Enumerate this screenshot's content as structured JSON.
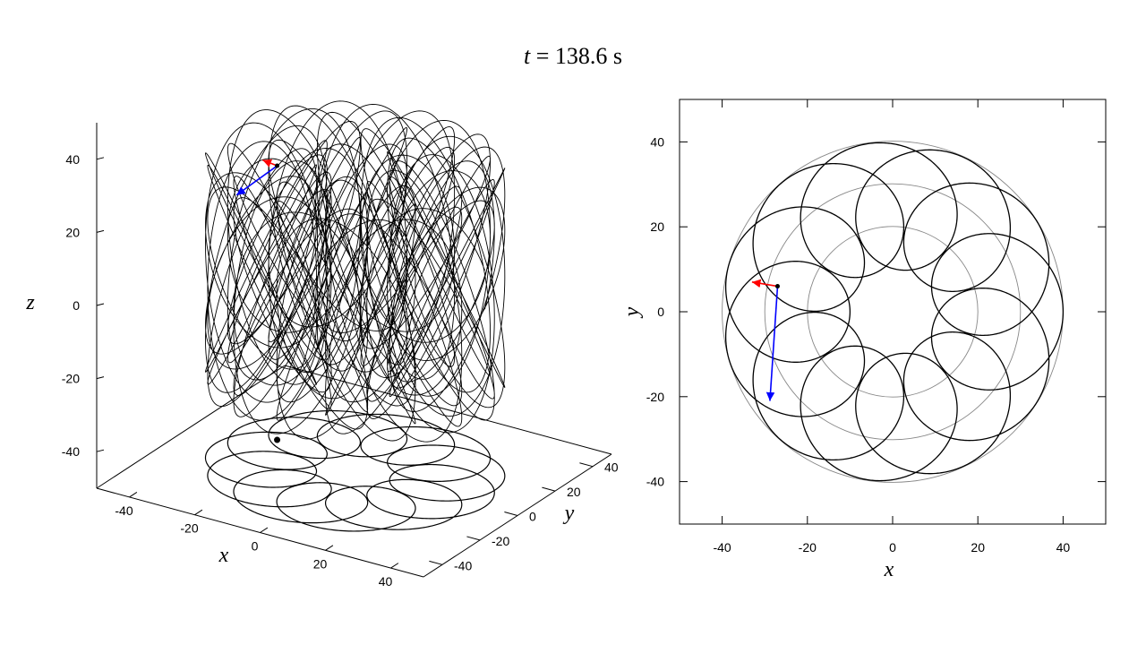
{
  "title": {
    "variable": "t",
    "rest": " = 138.6 s"
  },
  "chart_data": [
    {
      "type": "line3d",
      "xlabel": "x",
      "ylabel": "y",
      "zlabel": "z",
      "xlim": [
        -50,
        50
      ],
      "ylim": [
        -50,
        50
      ],
      "zlim": [
        -50,
        50
      ],
      "xticks": [
        -40,
        -20,
        0,
        20,
        40
      ],
      "yticks": [
        -40,
        -20,
        0,
        20,
        40
      ],
      "zticks": [
        -40,
        -20,
        0,
        20,
        40
      ],
      "trajectory": {
        "type": "epicycloid-like helix",
        "center_radius": 25,
        "loop_radius": 15,
        "loops": 12,
        "z_amplitude": 35,
        "color": "#000000"
      },
      "shadow_z": -50,
      "current_point": {
        "x": -27,
        "y": 6,
        "z": 25
      },
      "vectors": [
        {
          "name": "velocity",
          "color": "#ff0000",
          "dx": -5,
          "dy": 1,
          "dz": 0
        },
        {
          "name": "acceleration",
          "color": "#0000ff",
          "dx": -1.5,
          "dy": -19,
          "dz": -2
        }
      ]
    },
    {
      "type": "line",
      "xlabel": "x",
      "ylabel": "y",
      "xlim": [
        -50,
        50
      ],
      "ylim": [
        -50,
        50
      ],
      "xticks": [
        -40,
        -20,
        0,
        20,
        40
      ],
      "yticks": [
        -40,
        -20,
        0,
        20,
        40
      ],
      "guide_circles": [
        20,
        30,
        40
      ],
      "trajectory": {
        "center_radius": 25,
        "loop_radius": 15,
        "loops": 12,
        "color": "#000000"
      },
      "current_point": {
        "x": -27,
        "y": 6
      },
      "vectors": [
        {
          "name": "velocity",
          "color": "#ff0000",
          "dx": -6,
          "dy": 1
        },
        {
          "name": "acceleration",
          "color": "#0000ff",
          "dx": -1.8,
          "dy": -27
        }
      ]
    }
  ]
}
